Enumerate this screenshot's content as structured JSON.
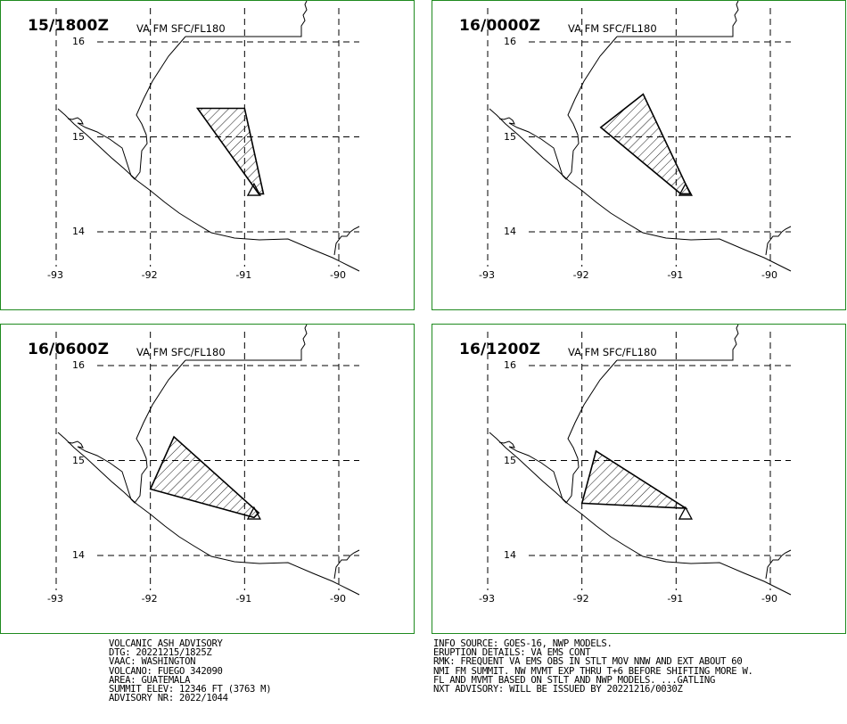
{
  "route_label": "VA FM SFC/FL180",
  "lat_labels": [
    "16",
    "15",
    "14"
  ],
  "lon_labels": [
    "-93",
    "-92",
    "-91",
    "-90"
  ],
  "panels": [
    {
      "title": "15/1800Z",
      "ash_cloud": [
        [
          -91.5,
          15.3
        ],
        [
          -91.0,
          15.3
        ],
        [
          -90.8,
          14.4
        ],
        [
          -90.85,
          14.4
        ]
      ]
    },
    {
      "title": "16/0000Z",
      "ash_cloud": [
        [
          -91.8,
          15.1
        ],
        [
          -91.35,
          15.45
        ],
        [
          -90.85,
          14.4
        ],
        [
          -90.95,
          14.4
        ]
      ]
    },
    {
      "title": "16/0600Z",
      "ash_cloud": [
        [
          -92.0,
          14.7
        ],
        [
          -91.75,
          15.25
        ],
        [
          -90.85,
          14.45
        ],
        [
          -90.9,
          14.4
        ]
      ]
    },
    {
      "title": "16/1200Z",
      "ash_cloud": [
        [
          -92.0,
          14.55
        ],
        [
          -91.85,
          15.1
        ],
        [
          -90.9,
          14.5
        ],
        [
          -90.95,
          14.5
        ]
      ]
    }
  ],
  "advisory_left": [
    "VOLCANIC ASH ADVISORY",
    "DTG: 20221215/1825Z",
    "VAAC: WASHINGTON",
    "VOLCANO: FUEGO 342090",
    "AREA: GUATEMALA",
    "SUMMIT ELEV: 12346 FT (3763 M)",
    "ADVISORY NR: 2022/1044"
  ],
  "advisory_right": [
    "INFO SOURCE: GOES-16, NWP MODELS.",
    "ERUPTION DETAILS: VA EMS CONT",
    "RMK: FREQUENT VA EMS OBS IN STLT MOV NNW AND EXT ABOUT 60",
    "NMI FM SUMMIT. NW MVMT EXP THRU T+6 BEFORE SHIFTING MORE W.",
    "FL AND MVMT BASED ON STLT AND NWP MODELS. ...GATLING",
    "NXT ADVISORY: WILL BE ISSUED BY 20221216/0030Z"
  ],
  "colors": {
    "frame": "#1f8a1f",
    "lines": "#000000"
  }
}
